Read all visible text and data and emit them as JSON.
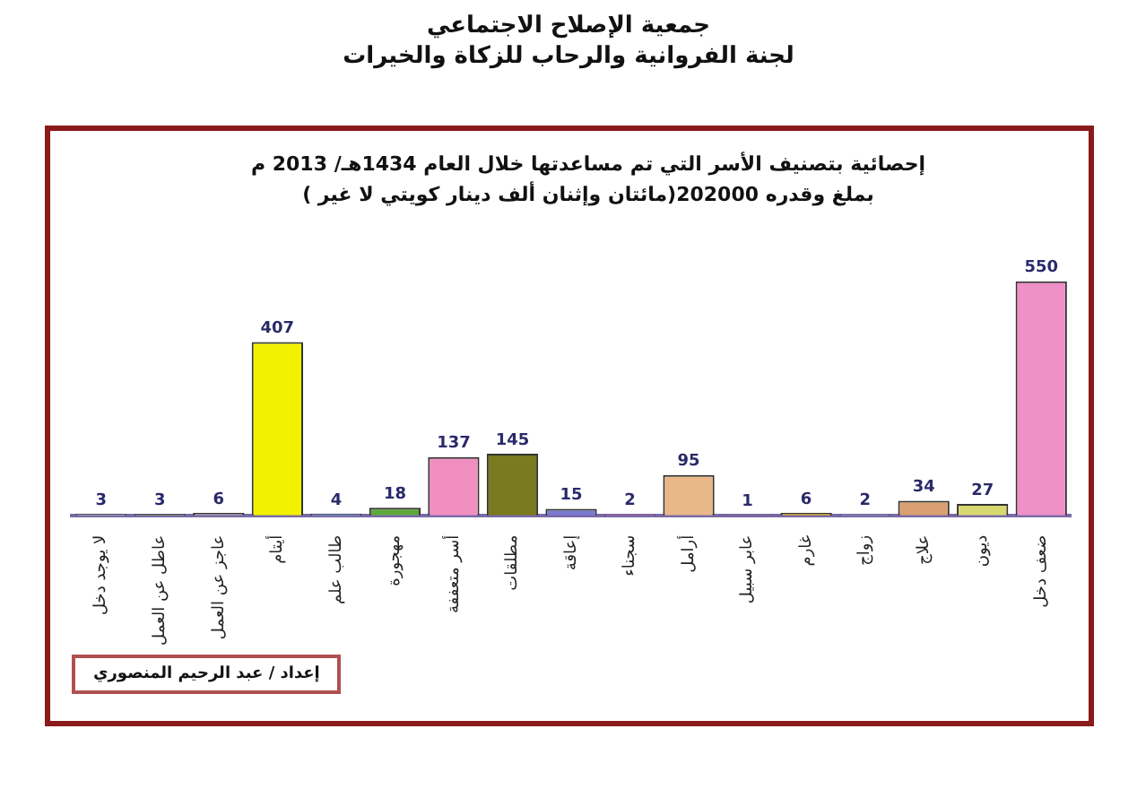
{
  "chart_data": {
    "type": "bar",
    "title": "إحصائية بتصنيف الأسر التي تم مساعدتها خلال العام 1434هـ/ 2013 م",
    "subtitle": "بملغ وقدره 202000(مائتان وإثنان ألف دينار كويتي لا غير )",
    "annotations": [
      "جمعية الإصلاح الاجتماعي",
      "لجنة الفروانية والرحاب للزكاة والخيرات",
      "إعداد / عبد الرحيم المنصوري"
    ],
    "categories": [
      "لا يوجد دخل",
      "عاطل عن العمل",
      "عاجز عن العمل",
      "أيتام",
      "طالب علم",
      "مهجورة",
      "أسر متعففة",
      "مطلقات",
      "إعاقة",
      "سجناء",
      "أرامل",
      "عابر سبيل",
      "غارم",
      "زواج",
      "علاج",
      "ديون",
      "ضعف دخل"
    ],
    "values": [
      3,
      3,
      6,
      407,
      4,
      18,
      137,
      145,
      15,
      2,
      95,
      1,
      6,
      2,
      34,
      27,
      550
    ],
    "colors": [
      "#9fd3a8",
      "#6aa84f",
      "#a0a0a0",
      "#f2f200",
      "#6fa8dc",
      "#5fa83c",
      "#f08fc0",
      "#7a7a20",
      "#7a7ad0",
      "#e070b0",
      "#e8b888",
      "#e07820",
      "#e0b020",
      "#90d0e0",
      "#d8a070",
      "#d8d870",
      "#f090c8"
    ],
    "data_labels": true,
    "grid": false,
    "legend": false
  }
}
